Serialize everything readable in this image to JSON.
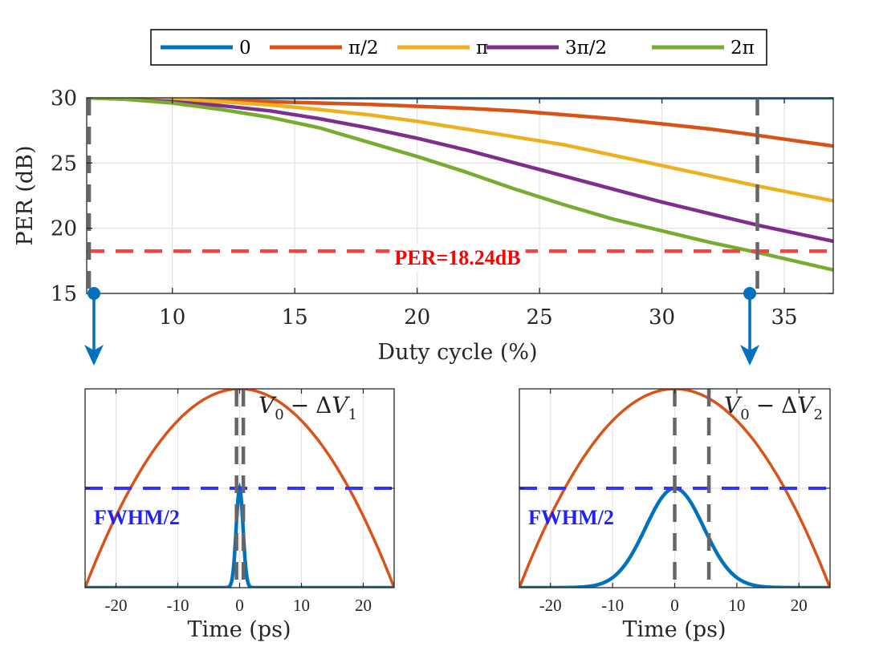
{
  "chart_data": [
    {
      "type": "line",
      "name": "per_vs_duty_cycle",
      "xlabel": "Duty cycle (%)",
      "ylabel": "PER (dB)",
      "xlim": [
        6.5,
        37
      ],
      "ylim": [
        15,
        30
      ],
      "xticks": [
        10,
        15,
        20,
        25,
        30,
        35
      ],
      "yticks": [
        15,
        20,
        25,
        30
      ],
      "legend": {
        "placement": "top-center",
        "labels": [
          "0",
          "π/2",
          "π",
          "3π/2",
          "2π"
        ]
      },
      "x": [
        6.5,
        8,
        10,
        12,
        14,
        16,
        18,
        20,
        22,
        24,
        26,
        28,
        30,
        32,
        34,
        37
      ],
      "series": [
        {
          "name": "0",
          "color": "#0072BD",
          "values": [
            30,
            30,
            30,
            30,
            30,
            30,
            30,
            30,
            30,
            30,
            30,
            30,
            30,
            30,
            30,
            30
          ]
        },
        {
          "name": "π/2",
          "color": "#D95319",
          "values": [
            30,
            30,
            29.9,
            29.8,
            29.7,
            29.6,
            29.5,
            29.35,
            29.2,
            29.0,
            28.7,
            28.4,
            28.0,
            27.6,
            27.1,
            26.3
          ]
        },
        {
          "name": "π",
          "color": "#EDB120",
          "values": [
            30,
            30,
            29.9,
            29.7,
            29.45,
            29.1,
            28.7,
            28.2,
            27.6,
            27.0,
            26.4,
            25.6,
            24.8,
            24.0,
            23.2,
            22.1
          ]
        },
        {
          "name": "3π/2",
          "color": "#7E2F8E",
          "values": [
            30,
            29.9,
            29.7,
            29.4,
            29.0,
            28.4,
            27.7,
            26.9,
            26.0,
            25.0,
            24.0,
            23.0,
            22.0,
            21.1,
            20.2,
            19.0
          ]
        },
        {
          "name": "2π",
          "color": "#77AC30",
          "values": [
            30,
            29.9,
            29.6,
            29.1,
            28.5,
            27.7,
            26.6,
            25.5,
            24.3,
            23.0,
            21.8,
            20.7,
            19.8,
            18.9,
            18.1,
            16.8
          ]
        }
      ],
      "reference_lines": [
        {
          "orientation": "horizontal",
          "value": 18.24,
          "label": "PER=18.24dB",
          "color": "#FF4040"
        },
        {
          "orientation": "vertical",
          "value": 6.6,
          "color": "#666666"
        },
        {
          "orientation": "vertical",
          "value": 33.9,
          "color": "#666666"
        }
      ]
    },
    {
      "type": "line",
      "name": "pulse_small_duty",
      "xlabel": "Time (ps)",
      "xlim": [
        -25,
        25
      ],
      "ylim": [
        0,
        1
      ],
      "xticks": [
        -20,
        -10,
        0,
        10,
        20
      ],
      "x_tick_labels": [
        "-20",
        "-10",
        "0",
        "10",
        "20"
      ],
      "curves": [
        {
          "name": "driving_voltage",
          "shape": "parabola",
          "peak": 1.0,
          "zeros_at": [
            -25,
            25
          ],
          "color": "#D95319"
        },
        {
          "name": "optical_pulse",
          "shape": "gaussian",
          "center": 0,
          "peak": 0.5,
          "fwhm": 1.3,
          "color": "#0072BD"
        }
      ],
      "reference_lines": [
        {
          "orientation": "horizontal",
          "value": 0.5,
          "label": "FWHM/2",
          "color": "#3333FF"
        },
        {
          "orientation": "vertical",
          "value": -0.5,
          "color": "#666666"
        },
        {
          "orientation": "vertical",
          "value": 0.6,
          "color": "#666666"
        }
      ],
      "annotation": {
        "base": "V",
        "sub0": "0",
        "minus": "−",
        "delta": "Δ",
        "sub1": "1"
      }
    },
    {
      "type": "line",
      "name": "pulse_large_duty",
      "xlabel": "Time (ps)",
      "xlim": [
        -25,
        25
      ],
      "ylim": [
        0,
        1
      ],
      "xticks": [
        -20,
        -10,
        0,
        10,
        20
      ],
      "x_tick_labels": [
        "-20",
        "-10",
        "0",
        "10",
        "20"
      ],
      "curves": [
        {
          "name": "driving_voltage",
          "shape": "parabola",
          "peak": 1.0,
          "zeros_at": [
            -25,
            25
          ],
          "color": "#D95319"
        },
        {
          "name": "optical_pulse",
          "shape": "gaussian",
          "center": 0,
          "peak": 0.5,
          "fwhm": 11,
          "color": "#0072BD"
        }
      ],
      "reference_lines": [
        {
          "orientation": "horizontal",
          "value": 0.5,
          "label": "FWHM/2",
          "color": "#3333FF"
        },
        {
          "orientation": "vertical",
          "value": 0,
          "color": "#666666"
        },
        {
          "orientation": "vertical",
          "value": 5.5,
          "color": "#666666"
        }
      ],
      "annotation": {
        "base": "V",
        "sub0": "0",
        "minus": "−",
        "delta": "Δ",
        "sub1": "2"
      }
    }
  ]
}
